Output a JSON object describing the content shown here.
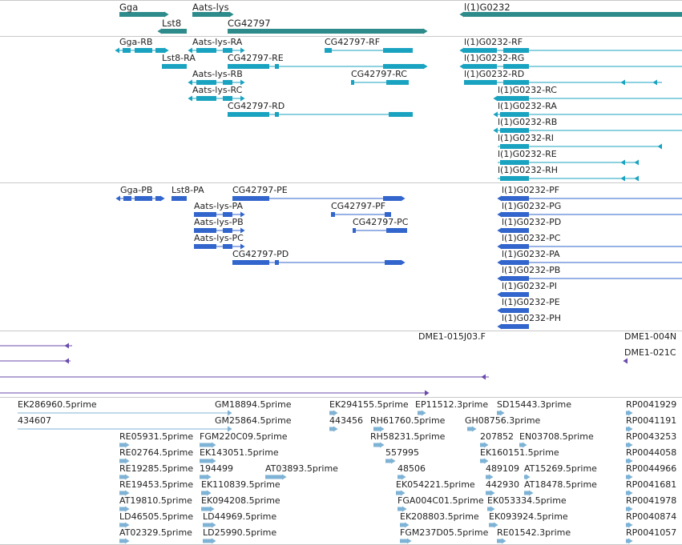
{
  "colors": {
    "gene": "#2e8b8b",
    "transcript": "#1aa3c0",
    "protein": "#3366cc",
    "clone": "#6a4bab",
    "est": "#7fb3d5",
    "separator": "#c8c8c8",
    "text": "#222222"
  },
  "genes": [
    "Gga",
    "Aats-lys",
    "l(1)G0232",
    "Lst8",
    "CG42797"
  ],
  "transcripts": [
    "Gga-RB",
    "Aats-lys-RA",
    "CG42797-RF",
    "l(1)G0232-RF",
    "Lst8-RA",
    "CG42797-RE",
    "l(1)G0232-RG",
    "Aats-lys-RB",
    "CG42797-RC",
    "l(1)G0232-RD",
    "Aats-lys-RC",
    "l(1)G0232-RC",
    "CG42797-RD",
    "l(1)G0232-RA",
    "l(1)G0232-RB",
    "l(1)G0232-RI",
    "l(1)G0232-RE",
    "l(1)G0232-RH"
  ],
  "proteins": [
    "Gga-PB",
    "Lst8-PA",
    "CG42797-PE",
    "l(1)G0232-PF",
    "Aats-lys-PA",
    "CG42797-PF",
    "l(1)G0232-PG",
    "Aats-lys-PB",
    "CG42797-PC",
    "l(1)G0232-PD",
    "Aats-lys-PC",
    "l(1)G0232-PC",
    "CG42797-PD",
    "l(1)G0232-PA",
    "l(1)G0232-PB",
    "l(1)G0232-PI",
    "l(1)G0232-PE",
    "l(1)G0232-PH"
  ],
  "clones": [
    "DME1-015J03.F",
    "DME1-004N",
    "DME1-021C"
  ],
  "ests": [
    "EK286960.5prime",
    "GM18894.5prime",
    "EK294155.5prime",
    "EP11512.3prime",
    "SD15443.3prime",
    "RP0041929",
    "434607",
    "GM25864.5prime",
    "443456",
    "RH61760.5prime",
    "GH08756.3prime",
    "RP0041191",
    "RE05931.5prime",
    "FGM220C09.5prime",
    "RH58231.5prime",
    "207852",
    "EN03708.5prime",
    "RP0043253",
    "RE02764.5prime",
    "EK143051.5prime",
    "557995",
    "EK160151.5prime",
    "RP0044058",
    "RE19285.5prime",
    "194499",
    "AT03893.5prime",
    "48506",
    "489109",
    "AT15269.5prime",
    "RP0044966",
    "RE19453.5prime",
    "EK110839.5prime",
    "EK054221.5prime",
    "442930",
    "AT18478.5prime",
    "RP0041681",
    "AT19810.5prime",
    "EK094208.5prime",
    "FGA004C01.5prime",
    "EK053334.5prime",
    "RP0041978",
    "LD46505.5prime",
    "LD44969.5prime",
    "EK208803.5prime",
    "EK093924.5prime",
    "RP0040874",
    "AT02329.5prime",
    "LD25990.5prime",
    "FGM237D05.5prime",
    "RE01542.3prime",
    "RP0041057"
  ]
}
